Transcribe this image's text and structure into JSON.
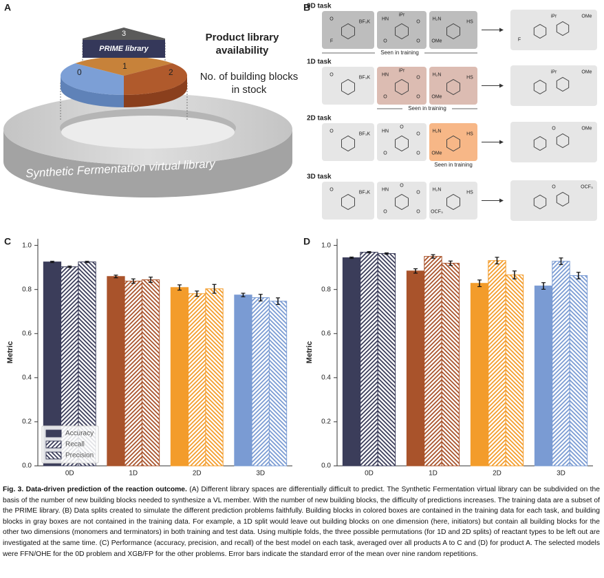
{
  "panel_a": {
    "label": "A",
    "prime_count": "3",
    "prime_label": "PRIME library",
    "sectors": [
      "0",
      "1",
      "2"
    ],
    "heading_lines": [
      "Product library",
      "availability"
    ],
    "subheading_lines": [
      "No. of building blocks",
      "in stock"
    ],
    "ring_label": "Synthetic Fermentation virtual library"
  },
  "panel_b": {
    "label": "B",
    "seen_label": "Seen in training",
    "tasks": [
      {
        "name": "0D task",
        "seen": [
          true,
          true,
          true
        ],
        "seen_color": "#bdbdbd",
        "reagents": [
          [
            "O",
            "BF₃K",
            "F"
          ],
          [
            "HN",
            "O",
            "O",
            "O",
            "iPr"
          ],
          [
            "H₂N",
            "HS",
            "OMe"
          ]
        ],
        "product": [
          "OMe",
          "iPr",
          "F"
        ]
      },
      {
        "name": "1D task",
        "seen": [
          false,
          true,
          true
        ],
        "seen_color": "#dcbcb2",
        "reagents": [
          [
            "O",
            "BF₃K"
          ],
          [
            "HN",
            "O",
            "O",
            "O",
            "iPr"
          ],
          [
            "H₂N",
            "HS",
            "OMe"
          ]
        ],
        "product": [
          "OMe",
          "iPr"
        ]
      },
      {
        "name": "2D task",
        "seen": [
          false,
          false,
          true
        ],
        "seen_color": "#f7b787",
        "reagents": [
          [
            "O",
            "BF₃K"
          ],
          [
            "HN",
            "O",
            "O",
            "O",
            "O"
          ],
          [
            "H₂N",
            "HS",
            "OMe"
          ]
        ],
        "product": [
          "OMe",
          "O"
        ]
      },
      {
        "name": "3D task",
        "seen": [
          false,
          false,
          false
        ],
        "seen_color": "#bdbdbd",
        "reagents": [
          [
            "O",
            "BF₃K"
          ],
          [
            "HN",
            "O",
            "O",
            "O",
            "O"
          ],
          [
            "H₂N",
            "HS",
            "OCF₃"
          ]
        ],
        "product": [
          "OCF₃",
          "O"
        ]
      }
    ]
  },
  "chart_data": [
    {
      "panel_label": "C",
      "type": "bar",
      "ylabel": "Metric",
      "categories": [
        "0D",
        "1D",
        "2D",
        "3D"
      ],
      "category_colors": [
        "#3b3d5a",
        "#a9532b",
        "#f39c2b",
        "#7a9bd3"
      ],
      "series": [
        {
          "name": "Accuracy",
          "pattern": "solid",
          "values": [
            0.925,
            0.859,
            0.809,
            0.775
          ],
          "errors": [
            0.003,
            0.006,
            0.012,
            0.008
          ]
        },
        {
          "name": "Recall",
          "pattern": "hatch-forward",
          "values": [
            0.903,
            0.838,
            0.781,
            0.763
          ],
          "errors": [
            0.003,
            0.01,
            0.012,
            0.015
          ]
        },
        {
          "name": "Precision",
          "pattern": "hatch-back",
          "values": [
            0.925,
            0.844,
            0.803,
            0.747
          ],
          "errors": [
            0.003,
            0.012,
            0.02,
            0.015
          ]
        }
      ],
      "ylim": [
        0,
        1.03
      ],
      "yticks": [
        {
          "value": 0,
          "label": "0.0"
        },
        0.2,
        0.4,
        0.6,
        0.8,
        {
          "value": 1,
          "label": "1.0"
        }
      ],
      "legend": "lower left"
    },
    {
      "panel_label": "D",
      "type": "bar",
      "ylabel": "Metric",
      "categories": [
        "0D",
        "1D",
        "2D",
        "3D"
      ],
      "category_colors": [
        "#3b3d5a",
        "#a9532b",
        "#f39c2b",
        "#7a9bd3"
      ],
      "series": [
        {
          "pattern": "solid",
          "values": [
            0.944,
            0.884,
            0.828,
            0.816
          ],
          "errors": [
            0.003,
            0.01,
            0.015,
            0.015
          ]
        },
        {
          "pattern": "hatch-forward",
          "values": [
            0.969,
            0.95,
            0.931,
            0.928
          ],
          "errors": [
            0.003,
            0.008,
            0.015,
            0.015
          ]
        },
        {
          "pattern": "hatch-back",
          "values": [
            0.963,
            0.919,
            0.866,
            0.863
          ],
          "errors": [
            0.003,
            0.01,
            0.018,
            0.015
          ]
        }
      ],
      "ylim": [
        0,
        1.03
      ],
      "yticks": [
        {
          "value": 0,
          "label": "0.0"
        },
        0.2,
        0.4,
        0.6,
        0.8,
        {
          "value": 1,
          "label": "1.0"
        }
      ]
    }
  ],
  "caption": {
    "label": "Fig. 3.",
    "title": "Data-driven prediction of the reaction outcome.",
    "text": "(A) Different library spaces are differentially difficult to predict. The Synthetic Fermentation virtual library can be subdivided on the basis of the number of new building blocks needed to synthesize a VL member. With the number of new building blocks, the difficulty of predictions increases. The training data are a subset of the PRIME library. (B) Data splits created to simulate the different prediction problems faithfully. Building blocks in colored boxes are contained in the training data for each task, and building blocks in gray boxes are not contained in the training data. For example, a 1D split would leave out building blocks on one dimension (here, initiators) but contain all building blocks for the other two dimensions (monomers and terminators) in both training and test data. Using multiple folds, the three possible permutations (for 1D and 2D splits) of reactant types to be left out are investigated at the same time. (C) Performance (accuracy, precision, and recall) of the best model on each task, averaged over all products A to C and (D) for product A. The selected models were FFN/OHE for the 0D problem and XGB/FP for the other problems. Error bars indicate the standard error of the mean over nine random repetitions."
  }
}
